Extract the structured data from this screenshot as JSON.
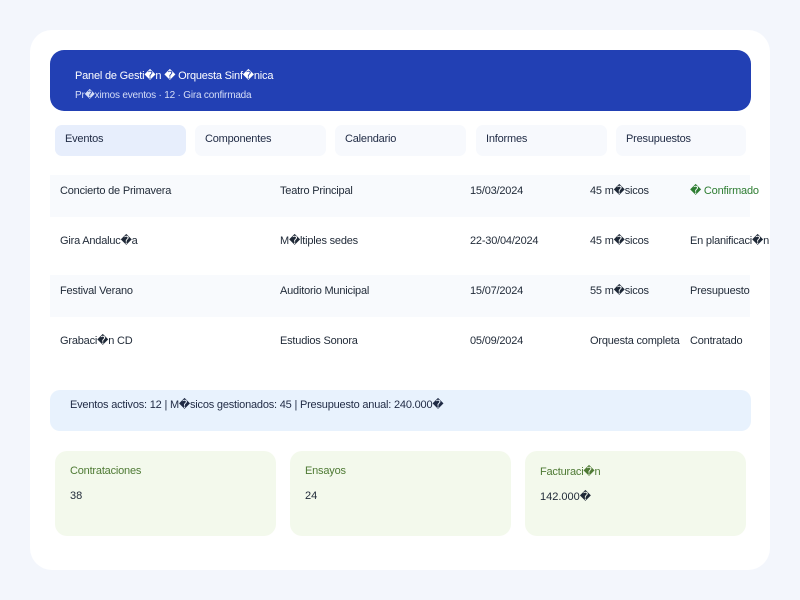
{
  "header": {
    "title": "Panel de Gesti�n � Orquesta Sinf�nica",
    "subtitle": "Pr�ximos eventos · 12 · Gira confirmada"
  },
  "tabs": [
    {
      "label": "Eventos",
      "active": true
    },
    {
      "label": "Componentes",
      "active": false
    },
    {
      "label": "Calendario",
      "active": false
    },
    {
      "label": "Informes",
      "active": false
    },
    {
      "label": "Presupuestos",
      "active": false
    }
  ],
  "events": [
    {
      "name": "Concierto de Primavera",
      "venue": "Teatro Principal",
      "date": "15/03/2024",
      "musicians": "45 m�sicos",
      "status": "� Confirmado"
    },
    {
      "name": "Gira Andaluc�a",
      "venue": "M�ltiples sedes",
      "date": "22-30/04/2024",
      "musicians": "45 m�sicos",
      "status": "En planificaci�n"
    },
    {
      "name": "Festival Verano",
      "venue": "Auditorio Municipal",
      "date": "15/07/2024",
      "musicians": "55 m�sicos",
      "status": "Presupuesto"
    },
    {
      "name": "Grabaci�n CD",
      "venue": "Estudios Sonora",
      "date": "05/09/2024",
      "musicians": "Orquesta completa",
      "status": "Contratado"
    }
  ],
  "summary": "Eventos activos: 12 | M�sicos gestionados: 45 | Presupuesto anual: 240.000�",
  "stats": [
    {
      "label": "Contrataciones",
      "value": "38"
    },
    {
      "label": "Ensayos",
      "value": "24"
    },
    {
      "label": "Facturaci�n",
      "value": "142.000�"
    }
  ],
  "colors": {
    "header_bg": "#2240b4",
    "accent_green": "#2e7d32",
    "active_tab_bg": "#e7eefc",
    "summary_bg": "#e8f2fd",
    "stat_bg": "#f3f9ec"
  }
}
